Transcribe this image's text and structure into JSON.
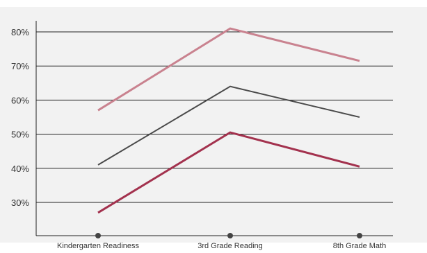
{
  "chart_data": {
    "type": "line",
    "title": "",
    "xlabel": "",
    "ylabel": "",
    "categories": [
      "Kindergarten Readiness",
      "3rd Grade Reading",
      "8th Grade Math"
    ],
    "yticks": [
      "80%",
      "70%",
      "60%",
      "50%",
      "40%",
      "30%"
    ],
    "ytick_values": [
      80,
      70,
      60,
      50,
      40,
      30
    ],
    "ylim": [
      20,
      86
    ],
    "grid": true,
    "series": [
      {
        "values": [
          57,
          81,
          71.5
        ],
        "color": "#c9828f"
      },
      {
        "values": [
          41,
          64,
          55
        ],
        "color": "#4a4a4a"
      },
      {
        "values": [
          27,
          50.5,
          40.5
        ],
        "color": "#a3324e"
      }
    ],
    "colors": {
      "background": "#f2f2f2",
      "grid": "#222222",
      "marker": "#444444"
    }
  }
}
